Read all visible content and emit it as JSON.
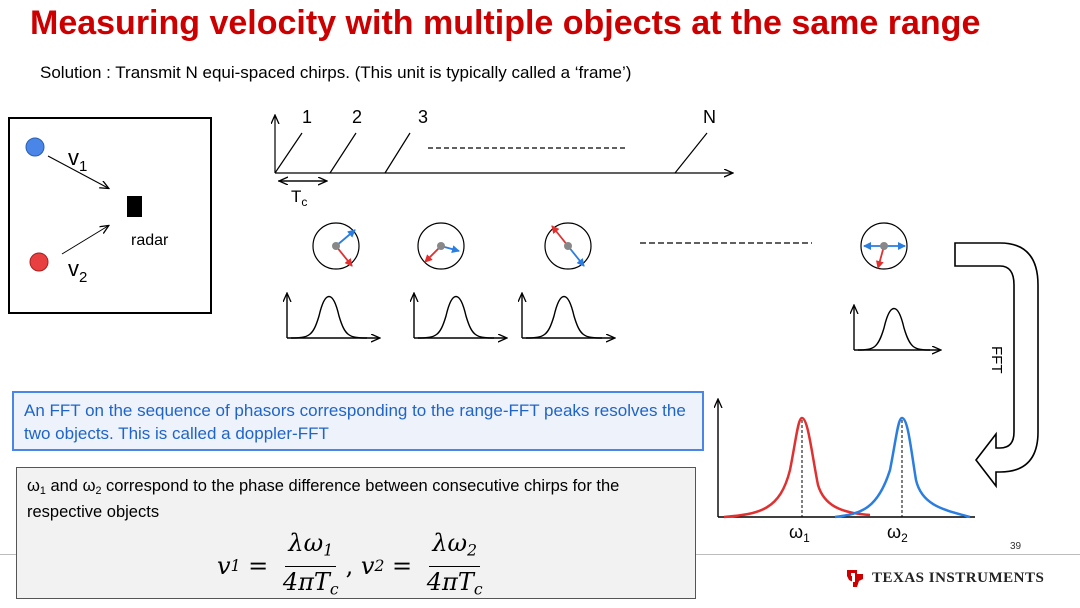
{
  "slide": {
    "title": "Measuring velocity with multiple objects at the same range",
    "subtitle": "Solution : Transmit N equi-spaced chirps. (This unit is typically called a ‘frame’)",
    "page_number": "39"
  },
  "scene": {
    "v1_label": "v",
    "v1_sub": "1",
    "v2_label": "v",
    "v2_sub": "2",
    "radar_label": "radar"
  },
  "chirps": {
    "labels": [
      "1",
      "2",
      "3",
      "N"
    ],
    "period_label": "T",
    "period_sub": "c"
  },
  "fft": {
    "side_label": "FFT",
    "omega1": "ω",
    "omega1_sub": "1",
    "omega2": "ω",
    "omega2_sub": "2"
  },
  "note_blue": {
    "text": "An FFT on the sequence of phasors corresponding to the range-FFT peaks resolves the two objects. This is called a doppler-FFT"
  },
  "note_grey": {
    "omega": "ω",
    "sub1": "1",
    "and": " and ",
    "sub2": "2",
    "text": " correspond to the phase difference between consecutive chirps for the respective objects"
  },
  "formula": {
    "lhs1": "v",
    "lhs1_sub": "1",
    "eq": " = ",
    "num1": "λω",
    "num1_sub": "1",
    "den1": "4πT",
    "den1_sub": "c",
    "comma": ", ",
    "lhs2": "v",
    "lhs2_sub": "2",
    "num2": "λω",
    "num2_sub": "2",
    "den2": "4πT",
    "den2_sub": "c"
  },
  "logo": {
    "text": "TEXAS INSTRUMENTS",
    "color": "#cc0000"
  },
  "colors": {
    "title": "#cc0000",
    "blue_object": "#4a86e8",
    "red_object": "#e03030",
    "note_text": "#1f64c8"
  }
}
